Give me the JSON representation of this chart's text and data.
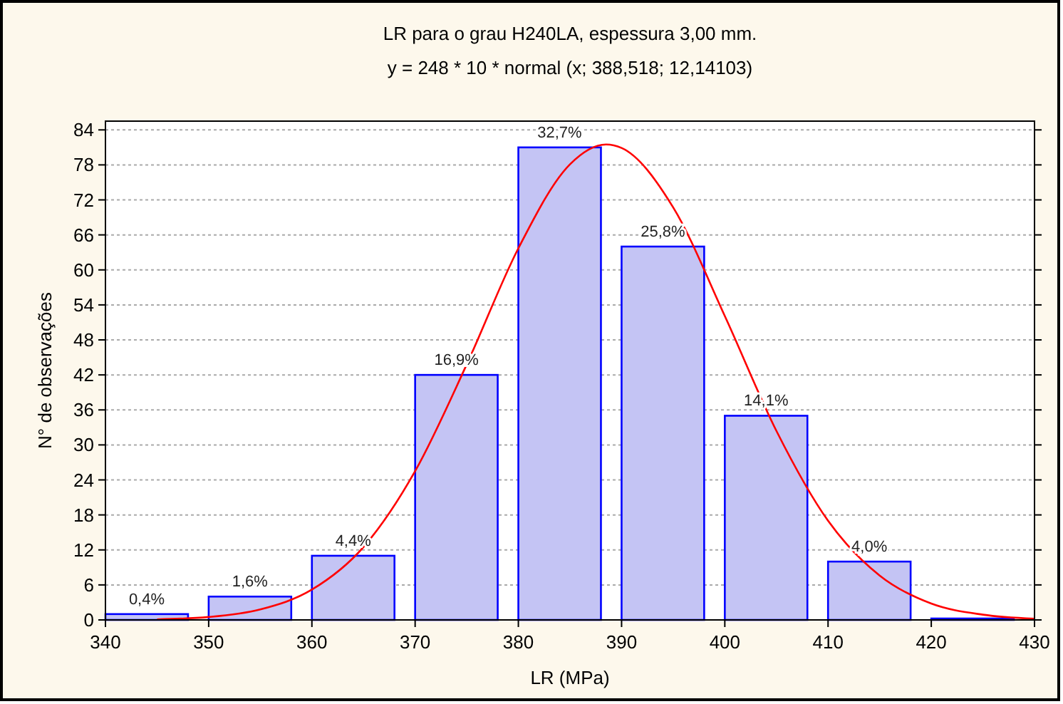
{
  "chart_data": {
    "type": "bar",
    "title": "LR para o grau H240LA, espessura 3,00 mm.",
    "subtitle": "y = 248 * 10 * normal (x; 388,518; 12,14103)",
    "xlabel": "LR (MPa)",
    "ylabel": "N° de observações",
    "xlim": [
      340,
      430
    ],
    "xticks": [
      340,
      350,
      360,
      370,
      380,
      390,
      400,
      410,
      420,
      430
    ],
    "ylim": [
      0,
      85.5
    ],
    "yticks": [
      0,
      6,
      12,
      18,
      24,
      30,
      36,
      42,
      48,
      54,
      60,
      66,
      72,
      78,
      84
    ],
    "grid": "y",
    "annotations": [
      {
        "text": "0,4%",
        "x": 344,
        "y": 1
      },
      {
        "text": "1,6%",
        "x": 354,
        "y": 4
      },
      {
        "text": "4,4%",
        "x": 364,
        "y": 11
      },
      {
        "text": "16,9%",
        "x": 374,
        "y": 42
      },
      {
        "text": "32,7%",
        "x": 384,
        "y": 81
      },
      {
        "text": "25,8%",
        "x": 394,
        "y": 64
      },
      {
        "text": "14,1%",
        "x": 404,
        "y": 35
      },
      {
        "text": "4,0%",
        "x": 414,
        "y": 10
      }
    ],
    "series": [
      {
        "color": "#c4c4f4",
        "x": [
          344,
          354,
          364,
          374,
          384,
          394,
          404,
          414,
          424
        ],
        "values": [
          1,
          4,
          11,
          42,
          81,
          64,
          35,
          10,
          0
        ]
      },
      {
        "type": "line",
        "color": "#ff0000",
        "x": [
          345,
          350,
          355,
          360,
          365,
          370,
          375,
          380,
          385,
          388.5,
          390,
          395,
          400,
          405,
          410,
          415,
          420,
          425,
          430
        ],
        "values": [
          0.1,
          0.5,
          1.8,
          5.2,
          12.5,
          25.5,
          43.8,
          63.7,
          78.1,
          81.5,
          80.9,
          70.7,
          52.1,
          32.4,
          17.0,
          7.6,
          2.8,
          0.9,
          0.2
        ]
      }
    ]
  }
}
